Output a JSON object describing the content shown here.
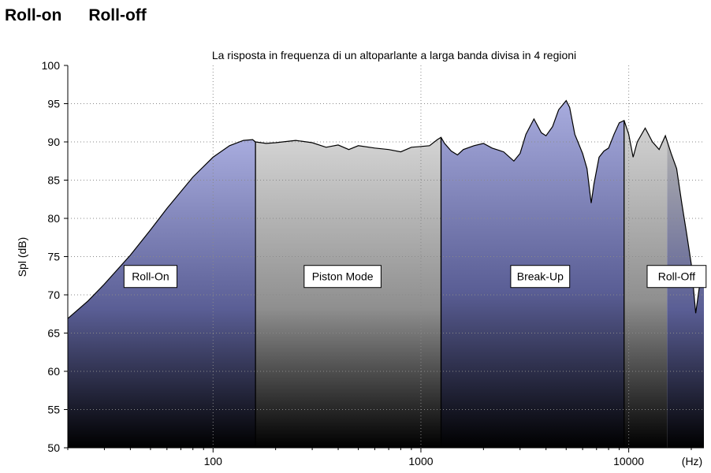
{
  "header": {
    "roll_on": "Roll-on",
    "roll_off": "Roll-off"
  },
  "chart_data": {
    "type": "area",
    "title": "La risposta in frequenza di un altoparlante a larga banda  divisa in 4 regioni",
    "xlabel": "(Hz)",
    "ylabel": "Spl (dB)",
    "xscale": "log",
    "xlim": [
      20,
      23000
    ],
    "ylim": [
      50,
      100
    ],
    "x_ticks": [
      "100",
      "1000",
      "10000"
    ],
    "y_ticks": [
      "100",
      "95",
      "90",
      "85",
      "80",
      "75",
      "70",
      "65",
      "60",
      "55",
      "50"
    ],
    "grid": true,
    "series": [
      {
        "x": [
          20,
          25,
          30,
          40,
          50,
          60,
          70,
          80,
          100,
          120,
          140,
          155,
          160,
          180,
          200,
          250,
          300,
          350,
          400,
          450,
          500,
          600,
          700,
          800,
          900,
          1000,
          1100,
          1200,
          1250,
          1300,
          1400,
          1500,
          1600,
          1800,
          2000,
          2200,
          2500,
          2800,
          3000,
          3200,
          3500,
          3800,
          4000,
          4300,
          4600,
          5000,
          5200,
          5500,
          6000,
          6300,
          6600,
          6800,
          7200,
          7600,
          8000,
          8500,
          9000,
          9500,
          10000,
          10500,
          11000,
          12000,
          13000,
          14000,
          15000,
          16000,
          17000,
          18000,
          19000,
          20000,
          21000,
          22000,
          23000
        ],
        "y": [
          66.9,
          69.2,
          71.4,
          75.2,
          78.5,
          81.3,
          83.5,
          85.4,
          88.0,
          89.5,
          90.2,
          90.3,
          90.0,
          89.8,
          89.9,
          90.2,
          89.9,
          89.3,
          89.6,
          89.0,
          89.5,
          89.2,
          89.0,
          88.7,
          89.3,
          89.4,
          89.5,
          90.3,
          90.6,
          89.8,
          88.8,
          88.3,
          89.0,
          89.5,
          89.8,
          89.2,
          88.7,
          87.5,
          88.5,
          91.0,
          93.0,
          91.2,
          90.8,
          92.0,
          94.2,
          95.4,
          94.5,
          91.0,
          88.5,
          86.5,
          82.0,
          84.5,
          88.0,
          88.8,
          89.2,
          91.0,
          92.5,
          92.8,
          91.0,
          88.0,
          90.0,
          91.8,
          90.0,
          89.0,
          90.8,
          88.5,
          86.5,
          82.0,
          78.0,
          74.0,
          67.6,
          71.5,
          73.0
        ]
      }
    ],
    "regions": [
      {
        "name": "Roll-On",
        "x_start": 20,
        "x_end": 160,
        "color": "#a8acde",
        "label_x": 50
      },
      {
        "name": "Piston Mode",
        "x_start": 160,
        "x_end": 1250,
        "color": "#d4d4d4",
        "label_x": 420
      },
      {
        "name": "Break-Up",
        "x_start": 1250,
        "x_end": 9500,
        "color": "#a8acde",
        "label_x": 3750
      },
      {
        "name": "Roll-Off",
        "x_start": 9500,
        "x_end": 15300,
        "color": "#d4d4d4",
        "label_x": 17000
      },
      {
        "name": "",
        "x_start": 15300,
        "x_end": 23000,
        "color": "#b0b0b0"
      }
    ],
    "region_label_y": 72.4
  }
}
